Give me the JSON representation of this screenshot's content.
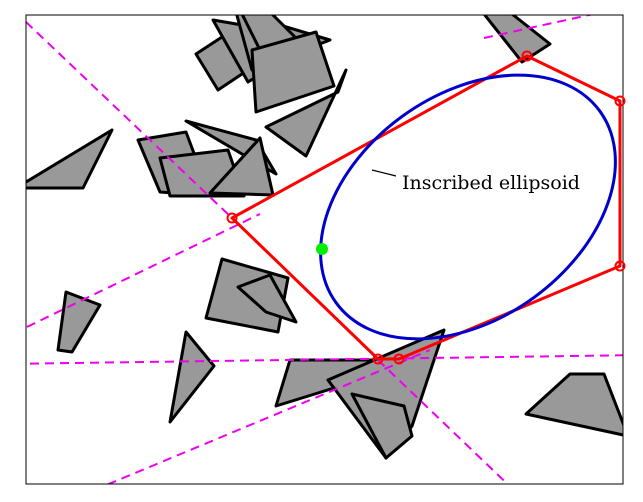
{
  "figure": {
    "annotation": "Inscribed ellipsoid",
    "colors": {
      "obstacle_fill": "#999999",
      "obstacle_stroke": "#000000",
      "region_stroke": "#ff0000",
      "ellipse_stroke": "#0000cc",
      "hyperplane_stroke": "#ee00ee",
      "seed_point": "#00ee00",
      "border": "#000000"
    }
  }
}
